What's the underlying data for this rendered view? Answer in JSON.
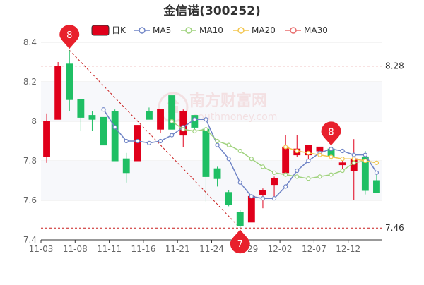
{
  "chart_data": {
    "type": "candlestick",
    "title": "金信诺(300252)",
    "legend": [
      {
        "label": "日K",
        "kind": "candle",
        "color": "#e0001b"
      },
      {
        "label": "MA5",
        "kind": "line",
        "color": "#6f84c6"
      },
      {
        "label": "MA10",
        "kind": "line",
        "color": "#9fd27d"
      },
      {
        "label": "MA20",
        "kind": "line",
        "color": "#f3c54d"
      },
      {
        "label": "MA30",
        "kind": "line",
        "color": "#e86d6d"
      }
    ],
    "legend_position": "top",
    "x_ticks": [
      "11-03",
      "11-08",
      "11-11",
      "11-16",
      "11-21",
      "11-24",
      "11-29",
      "12-02",
      "12-07",
      "12-12"
    ],
    "ylim": [
      7.4,
      8.4
    ],
    "y_ticks": [
      "7.4",
      "7.6",
      "7.8",
      "8",
      "8.2",
      "8.4"
    ],
    "grid": true,
    "colors": {
      "up": "#e0001b",
      "down": "#1fbf64",
      "text": "#666666",
      "title": "#333333",
      "grid": "#e9e9e9",
      "marker": "#e8202c",
      "dashed": "#c81d1d"
    },
    "candles": [
      {
        "o": 7.82,
        "h": 8.04,
        "l": 7.79,
        "c": 8.0
      },
      {
        "o": 8.01,
        "h": 8.3,
        "l": 8.01,
        "c": 8.28
      },
      {
        "o": 8.29,
        "h": 8.36,
        "l": 8.05,
        "c": 8.11
      },
      {
        "o": 8.11,
        "h": 8.11,
        "l": 7.95,
        "c": 8.02
      },
      {
        "o": 8.03,
        "h": 8.05,
        "l": 7.95,
        "c": 8.01
      },
      {
        "o": 8.02,
        "h": 8.02,
        "l": 7.88,
        "c": 7.88
      },
      {
        "o": 8.05,
        "h": 8.06,
        "l": 7.8,
        "c": 7.8
      },
      {
        "o": 7.81,
        "h": 7.84,
        "l": 7.69,
        "c": 7.74
      },
      {
        "o": 7.8,
        "h": 7.98,
        "l": 7.8,
        "c": 7.98
      },
      {
        "o": 8.05,
        "h": 8.07,
        "l": 8.01,
        "c": 8.01
      },
      {
        "o": 7.96,
        "h": 8.06,
        "l": 7.94,
        "c": 8.06
      },
      {
        "o": 8.13,
        "h": 8.13,
        "l": 7.96,
        "c": 7.96
      },
      {
        "o": 7.93,
        "h": 8.06,
        "l": 7.87,
        "c": 8.05
      },
      {
        "o": 8.03,
        "h": 8.03,
        "l": 7.96,
        "c": 7.97
      },
      {
        "o": 7.96,
        "h": 7.97,
        "l": 7.59,
        "c": 7.72
      },
      {
        "o": 7.76,
        "h": 7.77,
        "l": 7.67,
        "c": 7.71
      },
      {
        "o": 7.64,
        "h": 7.65,
        "l": 7.57,
        "c": 7.58
      },
      {
        "o": 7.54,
        "h": 7.55,
        "l": 7.46,
        "c": 7.47
      },
      {
        "o": 7.49,
        "h": 7.63,
        "l": 7.49,
        "c": 7.62
      },
      {
        "o": 7.63,
        "h": 7.66,
        "l": 7.56,
        "c": 7.65
      },
      {
        "o": 7.68,
        "h": 7.72,
        "l": 7.61,
        "c": 7.71
      },
      {
        "o": 7.74,
        "h": 7.93,
        "l": 7.73,
        "c": 7.87
      },
      {
        "o": 7.83,
        "h": 7.93,
        "l": 7.82,
        "c": 7.86
      },
      {
        "o": 7.83,
        "h": 7.87,
        "l": 7.8,
        "c": 7.88
      },
      {
        "o": 7.85,
        "h": 7.87,
        "l": 7.83,
        "c": 7.87
      },
      {
        "o": 7.86,
        "h": 7.88,
        "l": 7.8,
        "c": 7.82
      },
      {
        "o": 7.78,
        "h": 7.81,
        "l": 7.76,
        "c": 7.79
      },
      {
        "o": 7.75,
        "h": 7.91,
        "l": 7.6,
        "c": 7.81
      },
      {
        "o": 7.82,
        "h": 7.85,
        "l": 7.63,
        "c": 7.65
      },
      {
        "o": 7.7,
        "h": 7.73,
        "l": 7.64,
        "c": 7.64
      }
    ],
    "ma5": [
      null,
      null,
      null,
      null,
      null,
      8.06,
      7.97,
      7.9,
      7.9,
      7.89,
      7.9,
      7.93,
      7.97,
      8.01,
      8.01,
      7.88,
      7.81,
      7.69,
      7.62,
      7.61,
      7.61,
      7.67,
      7.75,
      7.8,
      7.84,
      7.86,
      7.85,
      7.83,
      7.83,
      7.74
    ],
    "ma10": [
      null,
      null,
      null,
      null,
      null,
      null,
      null,
      null,
      null,
      null,
      null,
      8.0,
      7.96,
      7.95,
      7.96,
      7.9,
      7.88,
      7.85,
      7.81,
      7.77,
      7.74,
      7.73,
      7.72,
      7.71,
      7.72,
      7.73,
      7.75,
      7.79,
      7.8,
      7.79
    ],
    "ma20": [
      null,
      null,
      null,
      null,
      null,
      null,
      null,
      null,
      null,
      null,
      null,
      null,
      null,
      null,
      null,
      null,
      null,
      null,
      null,
      null,
      null,
      7.87,
      7.85,
      7.84,
      7.83,
      7.82,
      7.81,
      7.81,
      7.8,
      7.79
    ],
    "ma30": [
      null,
      null,
      null,
      null,
      null,
      null,
      null,
      null,
      null,
      null,
      null,
      null,
      null,
      null,
      null,
      null,
      null,
      null,
      null,
      null,
      null,
      null,
      null,
      null,
      null,
      null,
      null,
      null,
      null,
      null
    ],
    "reference_lines": [
      {
        "value": 8.28,
        "label": "8.28"
      },
      {
        "value": 7.46,
        "label": "7.46"
      }
    ],
    "markers": [
      {
        "index": 2,
        "value": 8.36,
        "label": "8",
        "placement": "above"
      },
      {
        "index": 17,
        "value": 7.46,
        "label": "7",
        "placement": "below"
      },
      {
        "index": 25,
        "value": 7.87,
        "label": "8",
        "placement": "above"
      }
    ],
    "trend_line": {
      "from": {
        "index": 2,
        "value": 8.36
      },
      "to": {
        "index": 17,
        "value": 7.46
      }
    },
    "watermark": "南方财富网 southmoney.com"
  }
}
